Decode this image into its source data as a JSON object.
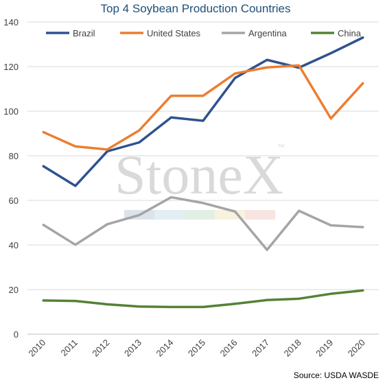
{
  "chart_data": {
    "type": "line",
    "title": "Top 4 Soybean Production Countries",
    "xlabel": "",
    "ylabel": "",
    "categories": [
      "2010",
      "2011",
      "2012",
      "2013",
      "2014",
      "2015",
      "2016",
      "2017",
      "2018",
      "2019",
      "2020"
    ],
    "ylim": [
      0,
      140
    ],
    "yticks": [
      0,
      20,
      40,
      60,
      80,
      100,
      120,
      140
    ],
    "grid": true,
    "legend_position": "top",
    "series": [
      {
        "name": "Brazil",
        "color": "#2f528f",
        "values": [
          75.3,
          66.5,
          82.0,
          86.0,
          97.2,
          95.7,
          114.9,
          123.0,
          119.5,
          126.0,
          133.0
        ]
      },
      {
        "name": "United States",
        "color": "#ed7d31",
        "values": [
          90.6,
          84.2,
          82.8,
          91.4,
          106.9,
          106.9,
          116.9,
          119.6,
          120.5,
          96.7,
          112.5
        ]
      },
      {
        "name": "Argentina",
        "color": "#a5a5a5",
        "values": [
          49.0,
          40.1,
          49.3,
          53.4,
          61.4,
          58.8,
          55.0,
          37.8,
          55.3,
          48.8,
          48.0
        ]
      },
      {
        "name": "China",
        "color": "#548235",
        "values": [
          15.1,
          14.9,
          13.4,
          12.4,
          12.2,
          12.2,
          13.6,
          15.3,
          15.9,
          18.1,
          19.6
        ]
      }
    ]
  },
  "watermark": {
    "text": "StoneX",
    "tm": "™",
    "band_colors": [
      "#dde3ea",
      "#e3edf4",
      "#e2efe4",
      "#f8f2de",
      "#f8e4e1"
    ]
  },
  "source": "Source: USDA WASDE"
}
